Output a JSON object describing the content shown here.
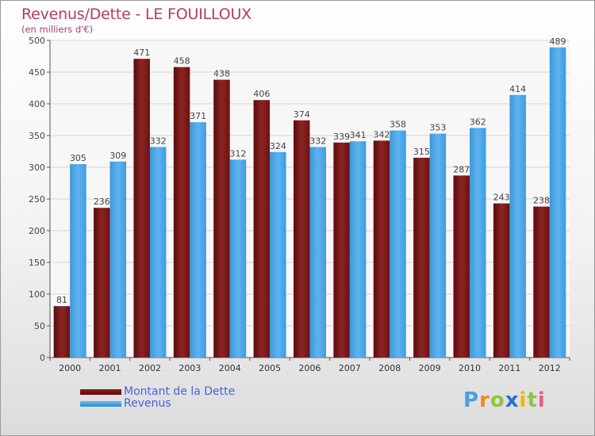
{
  "chart_data": {
    "type": "bar",
    "title": "Revenus/Dette - LE FOUILLOUX",
    "subtitle": "(en milliers d'€)",
    "categories": [
      "2000",
      "2001",
      "2002",
      "2003",
      "2004",
      "2005",
      "2006",
      "2007",
      "2008",
      "2009",
      "2010",
      "2011",
      "2012"
    ],
    "series": [
      {
        "name": "Montant de la Dette",
        "color": "#7a1a1a",
        "values": [
          81,
          236,
          471,
          458,
          438,
          406,
          374,
          339,
          342,
          315,
          287,
          243,
          238
        ]
      },
      {
        "name": "Revenus",
        "color": "#4aa6e6",
        "values": [
          305,
          309,
          332,
          371,
          312,
          324,
          332,
          341,
          358,
          353,
          362,
          414,
          489
        ]
      }
    ],
    "ylim": [
      0,
      500
    ],
    "yticks": [
      0,
      50,
      100,
      150,
      200,
      250,
      300,
      350,
      400,
      450,
      500
    ],
    "grid": true,
    "legend_position": "bottom-left"
  },
  "logo": {
    "letters": [
      {
        "ch": "P",
        "color": "#4a9fe0"
      },
      {
        "ch": "r",
        "color": "#f08a1c"
      },
      {
        "ch": "o",
        "color": "#8cc63f"
      },
      {
        "ch": "x",
        "color": "#2b6fd0"
      },
      {
        "ch": "i",
        "color": "#f0b400"
      },
      {
        "ch": "t",
        "color": "#8cc63f"
      },
      {
        "ch": "i",
        "color": "#e85a8a"
      }
    ]
  }
}
